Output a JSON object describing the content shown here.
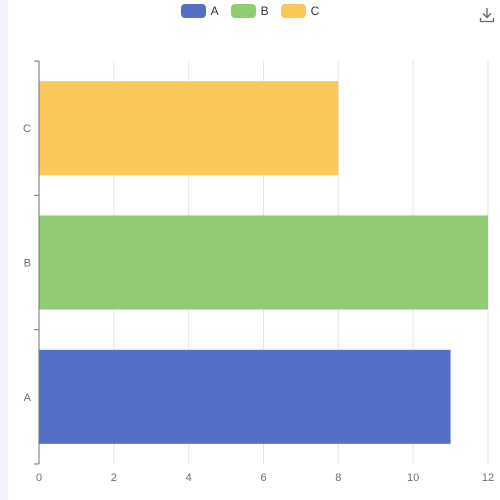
{
  "legend": [
    {
      "label": "A",
      "color": "#5470c6"
    },
    {
      "label": "B",
      "color": "#91cc75"
    },
    {
      "label": "C",
      "color": "#fac858"
    }
  ],
  "toolbar": {
    "download_icon": "download-icon"
  },
  "chart_data": {
    "type": "bar",
    "orientation": "horizontal",
    "categories": [
      "A",
      "B",
      "C"
    ],
    "values": [
      11,
      12,
      8
    ],
    "colors": [
      "#5470c6",
      "#91cc75",
      "#fac858"
    ],
    "xlim": [
      0,
      12
    ],
    "xticks": [
      0,
      2,
      4,
      6,
      8,
      10,
      12
    ],
    "grid": true,
    "legend_position": "top-center",
    "title": "",
    "xlabel": "",
    "ylabel": ""
  }
}
